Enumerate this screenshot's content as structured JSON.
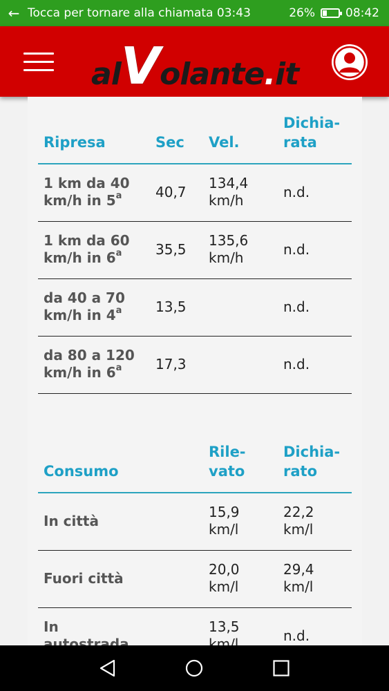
{
  "status_bar": {
    "call_text": "Tocca per tornare alla chiamata 03:43",
    "battery": "26%",
    "battery_level": 0.26,
    "time": "08:42"
  },
  "header": {
    "logo": {
      "part1": "al",
      "part2": "V",
      "part3": "olante",
      "part4": ".",
      "part5": "it"
    }
  },
  "ripresa": {
    "headers": {
      "c1": "Ripresa",
      "c2": "Sec",
      "c3": "Vel.",
      "c4a": "Dichia-",
      "c4b": "rata"
    },
    "rows": [
      {
        "line1": "1 km da 40",
        "line2": "km/h in 5",
        "sup": "a",
        "sec": "40,7",
        "vel1": "134,4",
        "vel2": "km/h",
        "dich": "n.d."
      },
      {
        "line1": "1 km da 60",
        "line2": "km/h in 6",
        "sup": "a",
        "sec": "35,5",
        "vel1": "135,6",
        "vel2": "km/h",
        "dich": "n.d."
      },
      {
        "line1": "da 40 a 70",
        "line2": "km/h in 4",
        "sup": "a",
        "sec": "13,5",
        "vel1": "",
        "vel2": "",
        "dich": "n.d."
      },
      {
        "line1": "da 80 a 120",
        "line2": "km/h in 6",
        "sup": "a",
        "sec": "17,3",
        "vel1": "",
        "vel2": "",
        "dich": "n.d."
      }
    ]
  },
  "consumo": {
    "headers": {
      "c1": "Consumo",
      "c3a": "Rile-",
      "c3b": "vato",
      "c4a": "Dichia-",
      "c4b": "rato"
    },
    "rows": [
      {
        "line1": "In città",
        "line2": "",
        "ril1": "15,9",
        "ril2": "km/l",
        "dich1": "22,2",
        "dich2": "km/l"
      },
      {
        "line1": "Fuori città",
        "line2": "",
        "ril1": "20,0",
        "ril2": "km/l",
        "dich1": "29,4",
        "dich2": "km/l"
      },
      {
        "line1": "In",
        "line2": "autostrada",
        "ril1": "13,5",
        "ril2": "km/l",
        "dich1": "n.d.",
        "dich2": ""
      }
    ]
  }
}
